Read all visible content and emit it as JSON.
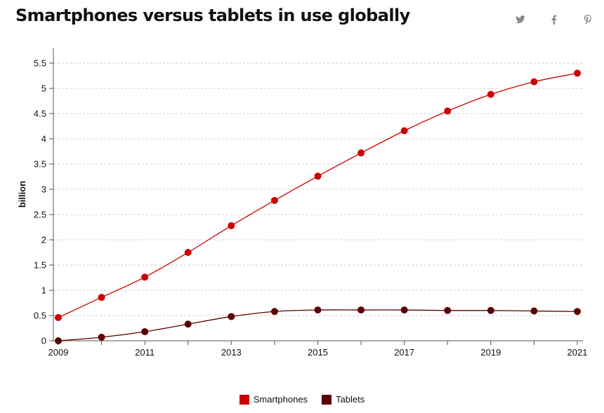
{
  "page": {
    "title": "Smartphones versus tablets in use globally"
  },
  "share": [
    {
      "icon": "twitter-icon",
      "color": "#8a8a8a"
    },
    {
      "icon": "facebook-icon",
      "color": "#8a8a8a"
    },
    {
      "icon": "pinterest-icon",
      "color": "#8a8a8a"
    }
  ],
  "chart_data": {
    "type": "line",
    "title": "Smartphones versus tablets in use globally",
    "xlabel": "",
    "ylabel": "billion",
    "x": [
      2009,
      2010,
      2011,
      2012,
      2013,
      2014,
      2015,
      2016,
      2017,
      2018,
      2019,
      2020,
      2021
    ],
    "xticks": [
      "2009",
      "2011",
      "2013",
      "2015",
      "2017",
      "2019",
      "2021"
    ],
    "yticks": [
      "0",
      "0.5",
      "1",
      "1.5",
      "2",
      "2.5",
      "3",
      "3.5",
      "4",
      "4.5",
      "5",
      "5.5"
    ],
    "ylim": [
      0,
      5.5
    ],
    "grid": true,
    "legend_position": "bottom",
    "series": [
      {
        "name": "Smartphones",
        "color": "#cc0000",
        "values": [
          0.46,
          0.86,
          1.26,
          1.75,
          2.28,
          2.78,
          3.26,
          3.72,
          4.16,
          4.55,
          4.88,
          5.13,
          5.3
        ]
      },
      {
        "name": "Tablets",
        "color": "#5c0000",
        "values": [
          0.0,
          0.07,
          0.18,
          0.33,
          0.48,
          0.58,
          0.61,
          0.61,
          0.61,
          0.6,
          0.6,
          0.59,
          0.58
        ]
      }
    ]
  }
}
